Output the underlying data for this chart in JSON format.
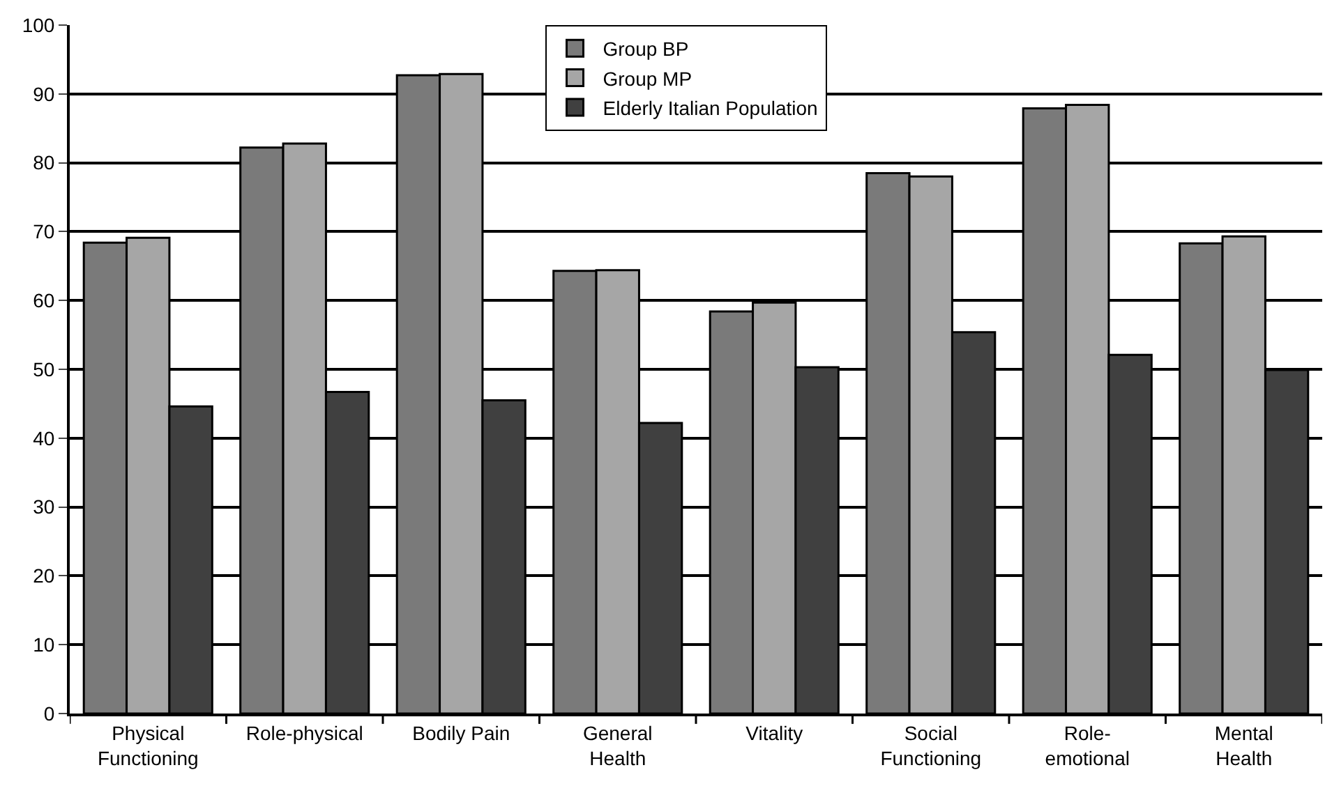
{
  "chart_data": {
    "type": "bar",
    "categories": [
      "Physical Functioning",
      "Role-physical",
      "Bodily Pain",
      "General Health",
      "Vitality",
      "Social Functioning",
      "Role-emotional",
      "Mental Health"
    ],
    "series": [
      {
        "name": "Group BP",
        "color": "#7a7a7a",
        "values": [
          68.4,
          82.2,
          92.7,
          64.3,
          58.4,
          78.5,
          87.9,
          68.3
        ]
      },
      {
        "name": "Group MP",
        "color": "#a6a6a6",
        "values": [
          69.1,
          82.8,
          92.9,
          64.4,
          59.7,
          78.0,
          88.4,
          69.3
        ]
      },
      {
        "name": "Elderly Italian Population",
        "color": "#404040",
        "values": [
          44.6,
          46.7,
          45.5,
          42.2,
          50.3,
          55.4,
          52.1,
          49.9
        ]
      }
    ],
    "ylim": [
      0,
      100
    ],
    "yticks": [
      0,
      10,
      20,
      30,
      40,
      50,
      60,
      70,
      80,
      90,
      100
    ],
    "grid": "y",
    "legend": "top"
  }
}
